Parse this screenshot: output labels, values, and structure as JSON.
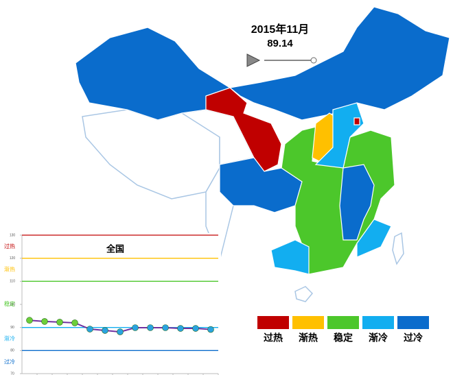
{
  "header": {
    "date": "2015年11月",
    "value": "89.14"
  },
  "legend": {
    "items": [
      {
        "label": "过热",
        "color": "#c00000"
      },
      {
        "label": "渐热",
        "color": "#ffc000"
      },
      {
        "label": "稳定",
        "color": "#4cc72b"
      },
      {
        "label": "渐冷",
        "color": "#12aef0"
      },
      {
        "label": "过冷",
        "color": "#0a6ccc"
      }
    ]
  },
  "chart_data": {
    "type": "line",
    "title": "全国",
    "categories": [
      null,
      null,
      null,
      null,
      null,
      null,
      null,
      null,
      null,
      null,
      null,
      null,
      null
    ],
    "series": [
      {
        "color": "#7030a0",
        "values": [
          93.1,
          92.6,
          92.3,
          92,
          89.3,
          88.7,
          88.1,
          89.9,
          89.9,
          89.9,
          89.6,
          89.6,
          89.14
        ]
      }
    ],
    "ylim": [
      70,
      130
    ],
    "yticks": [
      70,
      80,
      90,
      100,
      110,
      120,
      130
    ],
    "zones": [
      {
        "label": "过热",
        "from": 120,
        "to": 130,
        "color": "#c00000"
      },
      {
        "label": "渐热",
        "from": 110,
        "to": 120,
        "color": "#ffc000"
      },
      {
        "label": "稳定",
        "from": 90,
        "to": 110,
        "color": "#4cc72b"
      },
      {
        "label": "渐冷",
        "from": 80,
        "to": 90,
        "color": "#12aef0"
      },
      {
        "label": "过冷",
        "from": 70,
        "to": 80,
        "color": "#0a6ccc"
      }
    ]
  }
}
